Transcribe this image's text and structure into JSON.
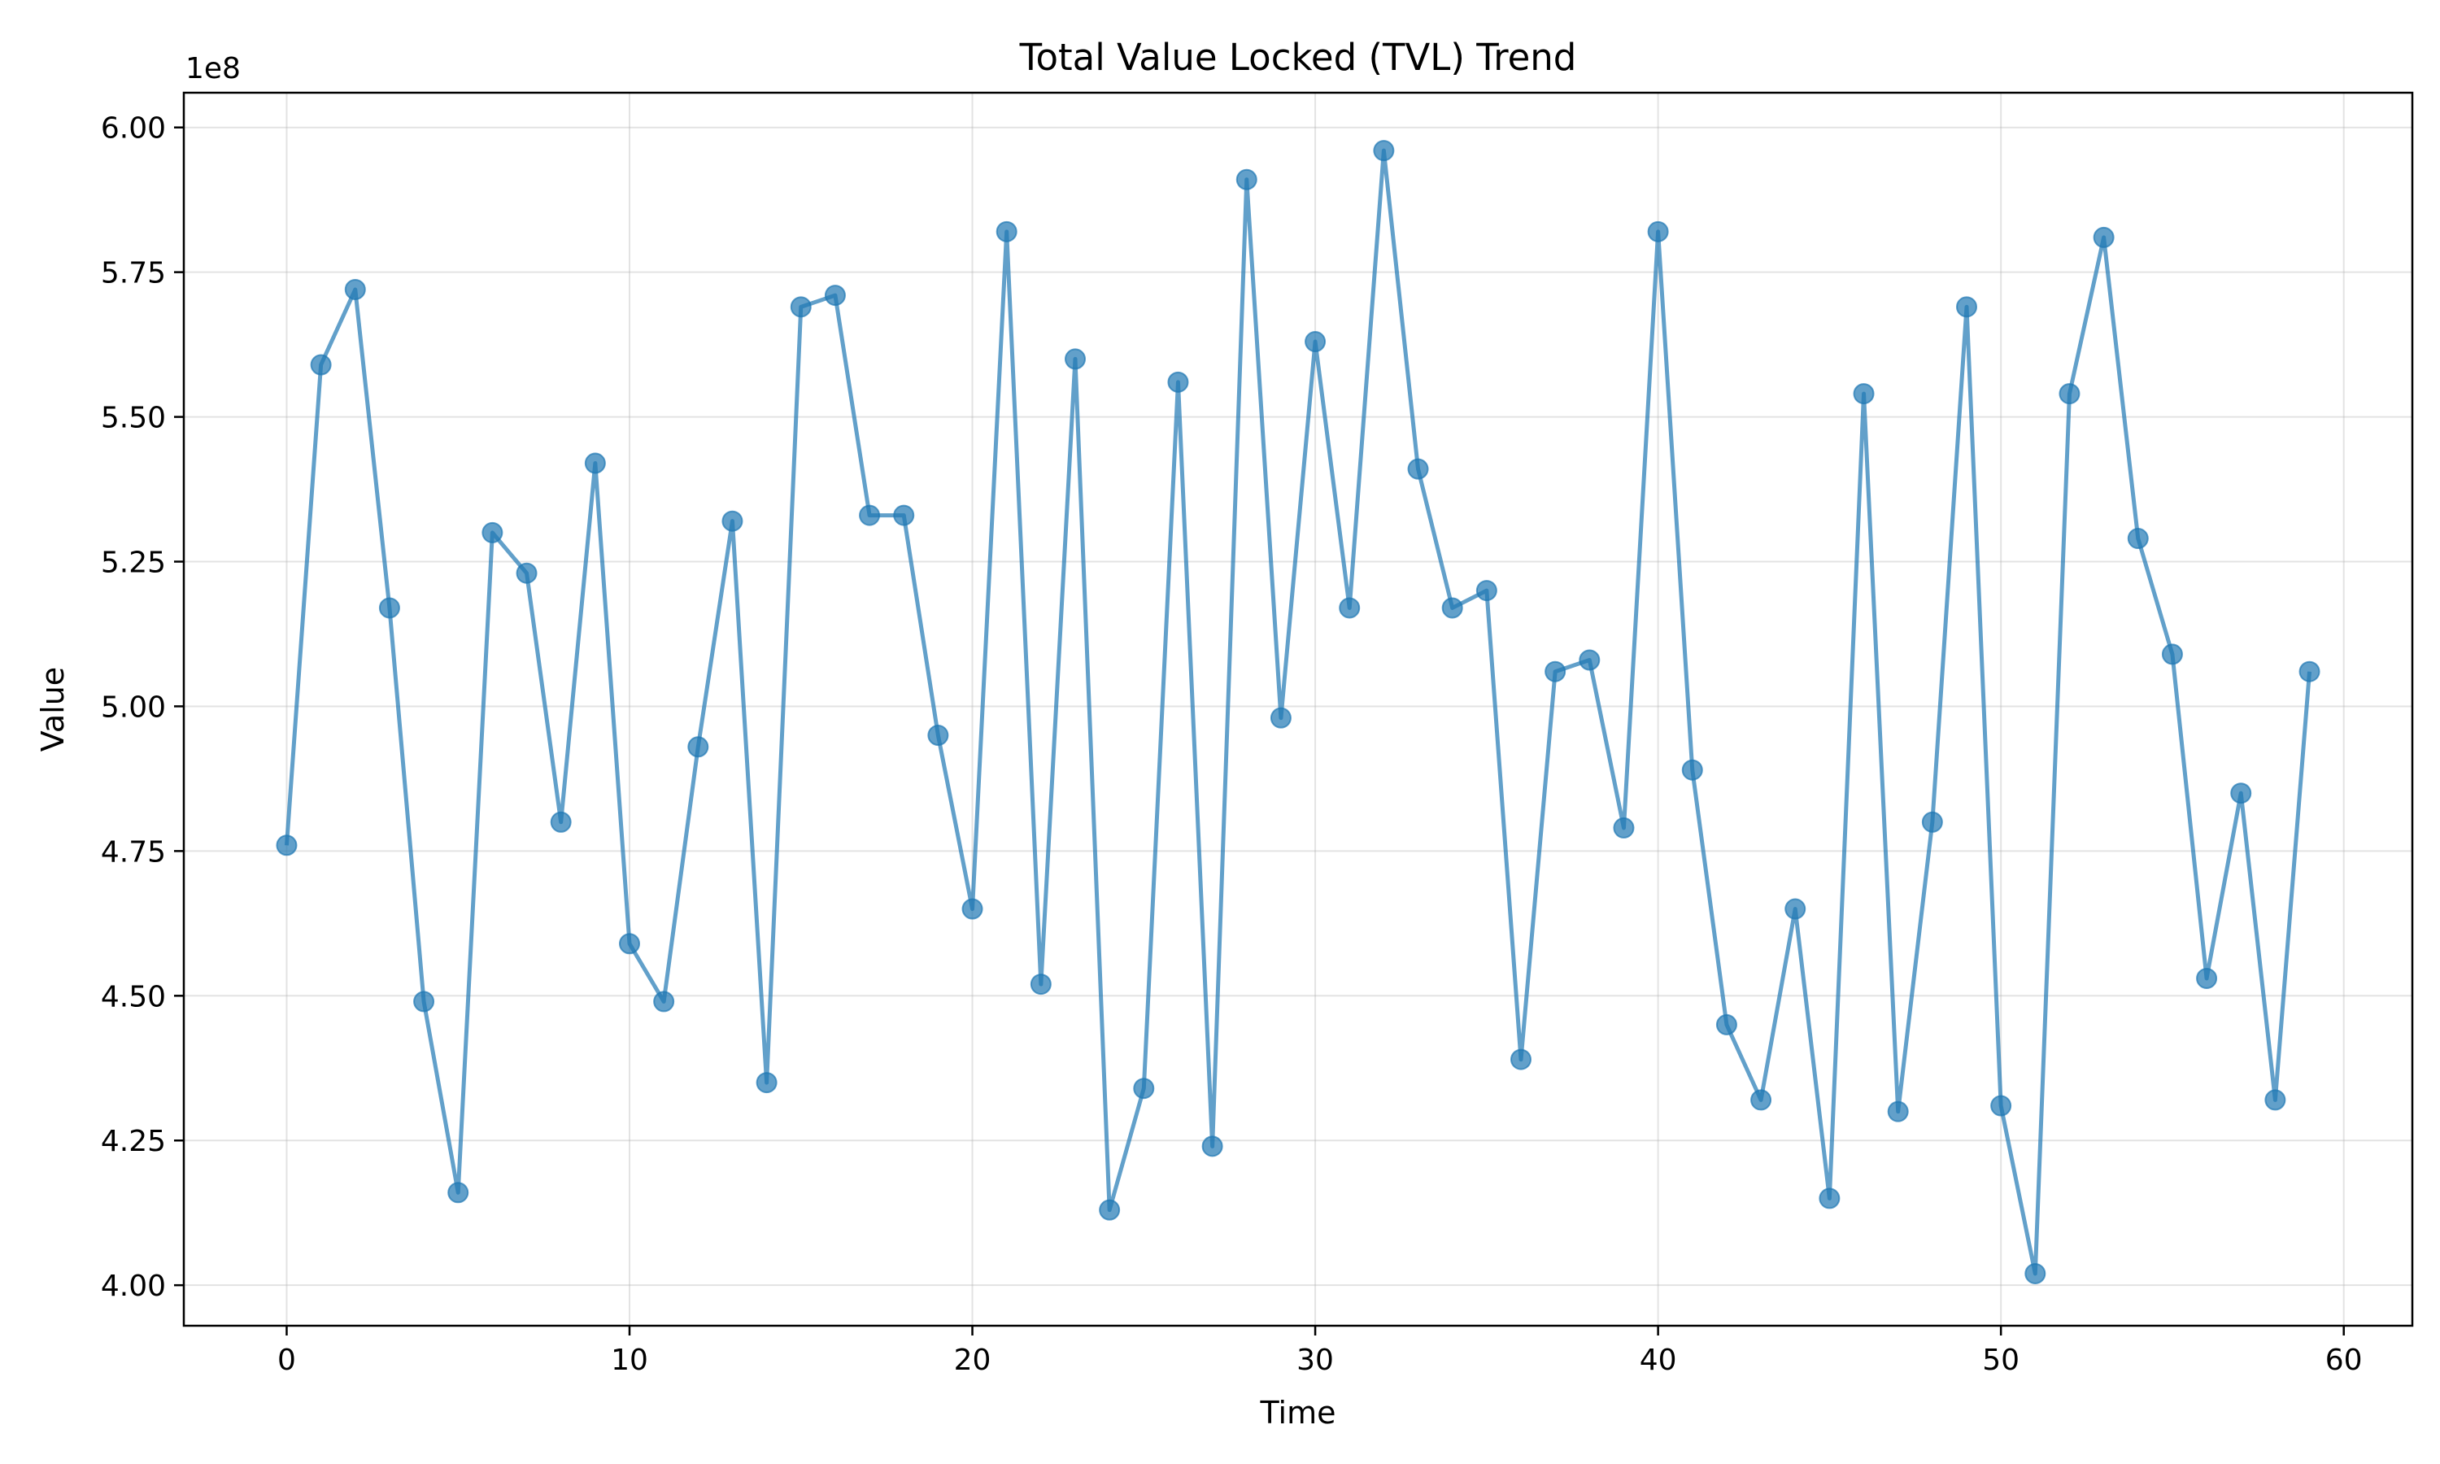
{
  "chart_data": {
    "type": "line",
    "title": "Total Value Locked (TVL) Trend",
    "xlabel": "Time",
    "ylabel": "Value",
    "y_offset_label": "1e8",
    "xlim": [
      -3,
      62
    ],
    "ylim": [
      3.93,
      6.06
    ],
    "x_ticks": [
      0,
      10,
      20,
      30,
      40,
      50,
      60
    ],
    "x_tick_labels": [
      "0",
      "10",
      "20",
      "30",
      "40",
      "50",
      "60"
    ],
    "y_ticks": [
      4.0,
      4.25,
      4.5,
      4.75,
      5.0,
      5.25,
      5.5,
      5.75,
      6.0
    ],
    "y_tick_labels": [
      "4.00",
      "4.25",
      "4.50",
      "4.75",
      "5.00",
      "5.25",
      "5.50",
      "5.75",
      "6.00"
    ],
    "grid": true,
    "colors": {
      "series": "#1f77b4"
    },
    "series": [
      {
        "x": [
          0,
          1,
          2,
          3,
          4,
          5,
          6,
          7,
          8,
          9,
          10,
          11,
          12,
          13,
          14,
          15,
          16,
          17,
          18,
          19,
          20,
          21,
          22,
          23,
          24,
          25,
          26,
          27,
          28,
          29,
          30,
          31,
          32,
          33,
          34,
          35,
          36,
          37,
          38,
          39,
          40,
          41,
          42,
          43,
          44,
          45,
          46,
          47,
          48,
          49,
          50,
          51,
          52,
          53,
          54,
          55,
          56,
          57,
          58,
          59
        ],
        "values": [
          4.76,
          5.59,
          5.72,
          5.17,
          4.49,
          4.16,
          5.3,
          5.23,
          4.8,
          5.42,
          4.59,
          4.49,
          4.93,
          5.32,
          4.35,
          5.69,
          5.71,
          5.33,
          5.33,
          4.95,
          4.65,
          5.82,
          4.52,
          5.6,
          4.13,
          4.34,
          5.56,
          4.24,
          5.91,
          4.98,
          5.63,
          5.17,
          5.96,
          5.41,
          5.17,
          5.2,
          4.39,
          5.06,
          5.08,
          4.79,
          5.82,
          4.89,
          4.45,
          4.32,
          4.65,
          4.15,
          5.54,
          4.3,
          4.8,
          5.69,
          4.31,
          4.02,
          5.54,
          5.81,
          5.29,
          5.09,
          4.53,
          4.85,
          4.32,
          5.06
        ]
      }
    ]
  }
}
